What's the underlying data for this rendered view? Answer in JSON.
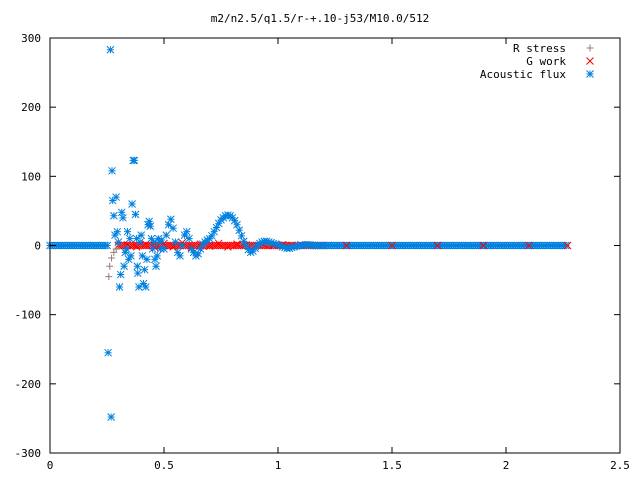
{
  "chart_data": {
    "type": "scatter",
    "title": "m2/n2.5/q1.5/r-+.10-j53/M10.0/512",
    "xlabel": "",
    "ylabel": "",
    "xlim": [
      0,
      2.5
    ],
    "ylim": [
      -300,
      300
    ],
    "x_ticks": [
      {
        "value": 0,
        "label": "0"
      },
      {
        "value": 0.5,
        "label": "0.5"
      },
      {
        "value": 1,
        "label": "1"
      },
      {
        "value": 1.5,
        "label": "1.5"
      },
      {
        "value": 2,
        "label": "2"
      },
      {
        "value": 2.5,
        "label": "2.5"
      }
    ],
    "y_ticks": [
      {
        "value": 300,
        "label": "300"
      },
      {
        "value": 200,
        "label": "200"
      },
      {
        "value": 100,
        "label": "100"
      },
      {
        "value": 0,
        "label": "0"
      },
      {
        "value": -100,
        "label": "-100"
      },
      {
        "value": -200,
        "label": "-200"
      },
      {
        "value": -300,
        "label": "-300"
      }
    ],
    "grid": false,
    "legend_position": "top-right",
    "series": [
      {
        "name": "R stress",
        "marker": "plus",
        "color": "#9a7a7a",
        "x": [
          0.258,
          0.262,
          0.27,
          0.28,
          0.29,
          0.3
        ],
        "y": [
          -45,
          -30,
          -18,
          -10,
          -5,
          2
        ]
      },
      {
        "name": "G work",
        "marker": "cross",
        "color": "#ff0000",
        "x": [
          0.3,
          0.34,
          0.38,
          0.42,
          0.46,
          0.5,
          0.54,
          0.58,
          0.62,
          0.66,
          0.7,
          0.74,
          0.78,
          0.82,
          0.86,
          0.9,
          0.94,
          0.98,
          1.02,
          1.06,
          1.1,
          1.14,
          1.18,
          1.3,
          1.5,
          1.7,
          1.9,
          2.1,
          2.27
        ],
        "y": [
          0,
          1,
          -2,
          2,
          -3,
          3,
          -2,
          4,
          -3,
          2,
          -1,
          3,
          -2,
          2,
          1,
          -1,
          1,
          0,
          1,
          0,
          1,
          0,
          0,
          0,
          0,
          0,
          0,
          0,
          0
        ]
      },
      {
        "name": "Acoustic flux",
        "marker": "star",
        "color": "#0080e0",
        "x": [
          0.255,
          0.265,
          0.268,
          0.272,
          0.275,
          0.28,
          0.285,
          0.29,
          0.295,
          0.3,
          0.305,
          0.31,
          0.315,
          0.32,
          0.325,
          0.33,
          0.335,
          0.34,
          0.345,
          0.35,
          0.355,
          0.36,
          0.365,
          0.37,
          0.375,
          0.38,
          0.383,
          0.385,
          0.39,
          0.395,
          0.4,
          0.405,
          0.41,
          0.415,
          0.42,
          0.425,
          0.43,
          0.435,
          0.44,
          0.445,
          0.45,
          0.455,
          0.46,
          0.465,
          0.47,
          0.475,
          0.48,
          0.485,
          0.49,
          0.5,
          0.51,
          0.52,
          0.53,
          0.54,
          0.55,
          0.56,
          0.57,
          0.58,
          0.59,
          0.6,
          0.61,
          0.62,
          0.63,
          0.64,
          0.65,
          0.66,
          0.67,
          0.68,
          0.69,
          0.7,
          0.71,
          0.72,
          0.73,
          0.74,
          0.75,
          0.76,
          0.77,
          0.78,
          0.79,
          0.8,
          0.81,
          0.82,
          0.83,
          0.84,
          0.85,
          0.86,
          0.87,
          0.88,
          0.89,
          0.9,
          0.91,
          0.92,
          0.93,
          0.94,
          0.95,
          0.96,
          0.97,
          0.98,
          0.99,
          1.0,
          1.01,
          1.02,
          1.03,
          1.04,
          1.05,
          1.06,
          1.07,
          1.08,
          1.09,
          1.1,
          1.11,
          1.12,
          1.13,
          1.14,
          1.15,
          1.16,
          1.17,
          1.18,
          1.19,
          1.2,
          1.21,
          1.22
        ],
        "y": [
          -155,
          283,
          -248,
          108,
          65,
          43,
          15,
          70,
          20,
          5,
          -60,
          -42,
          48,
          40,
          -30,
          -10,
          -5,
          20,
          -20,
          10,
          -15,
          60,
          123,
          123,
          45,
          10,
          -30,
          -40,
          -60,
          5,
          15,
          -15,
          -55,
          -35,
          -60,
          -20,
          30,
          35,
          28,
          10,
          -5,
          5,
          -20,
          -30,
          -15,
          10,
          5,
          -5,
          8,
          -5,
          15,
          30,
          38,
          25,
          5,
          -10,
          -15,
          0,
          15,
          20,
          10,
          -5,
          -10,
          -15,
          -12,
          -5,
          2,
          5,
          8,
          10,
          14,
          20,
          26,
          32,
          37,
          40,
          43,
          44,
          43,
          40,
          36,
          30,
          22,
          14,
          6,
          0,
          -6,
          -10,
          -8,
          -4,
          0,
          3,
          5,
          6,
          6,
          5,
          4,
          3,
          2,
          1,
          0,
          -2,
          -3,
          -4,
          -4,
          -3,
          -2,
          -1,
          0,
          0,
          0,
          1,
          1,
          1,
          0,
          0,
          0,
          0,
          0,
          0,
          0,
          0
        ]
      }
    ],
    "baseline_bands": [
      {
        "series": "Acoustic flux",
        "x_range": [
          0.0,
          0.255
        ],
        "y": 0
      },
      {
        "series": "Acoustic flux",
        "x_range": [
          1.22,
          2.27
        ],
        "y": 0
      },
      {
        "series": "G work",
        "x_range": [
          0.3,
          1.2
        ],
        "y": 0
      }
    ]
  }
}
